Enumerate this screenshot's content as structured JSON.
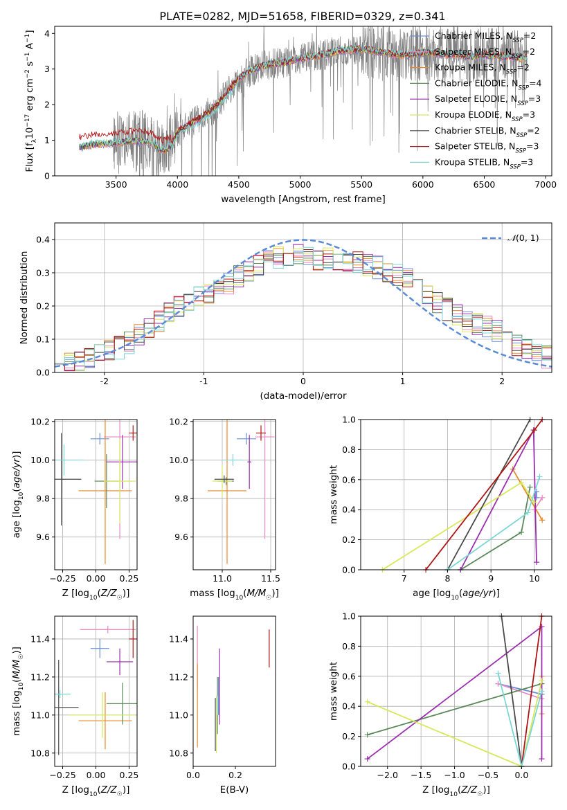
{
  "figure_title": "PLATE=0282, MJD=51658, FIBERID=0329, z=0.341",
  "colors": {
    "Chabrier MILES": "#6a8fd8",
    "Salpeter MILES": "#e78ac3",
    "Kroupa MILES": "#e8892a",
    "Chabrier ELODIE": "#5a8a5a",
    "Salpeter ELODIE": "#9b2fae",
    "Kroupa ELODIE": "#d7e85a",
    "Chabrier STELIB": "#4a4a4a",
    "Salpeter STELIB": "#b01515",
    "Kroupa STELIB": "#7dd6d6",
    "data": "#808080",
    "gaussian": "#5b8ad6",
    "grid": "#b0b0b0"
  },
  "chart_data": [
    {
      "id": "spectrum",
      "type": "line",
      "title": "PLATE=0282, MJD=51658, FIBERID=0329, z=0.341",
      "xlabel": "wavelength [Angstrom, rest frame]",
      "ylabel_tex": "Flux [f_λ 10^-17 erg cm^-2 s^-1 A^-1]",
      "xlim": [
        3000,
        7050
      ],
      "ylim": [
        0,
        4.2
      ],
      "xticks": [
        3500,
        4000,
        4500,
        5000,
        5500,
        6000,
        6500,
        7000
      ],
      "yticks": [
        0,
        1,
        2,
        3,
        4
      ],
      "grid": false,
      "legend_position": "upper right",
      "legend": [
        {
          "base": "Chabrier MILES, N",
          "sub": "SSP",
          "tail": "=2"
        },
        {
          "base": "Salpeter MILES, N",
          "sub": "SSP",
          "tail": "=2"
        },
        {
          "base": "Kroupa MILES, N",
          "sub": "SSP",
          "tail": "=2"
        },
        {
          "base": "Chabrier ELODIE, N",
          "sub": "SSP",
          "tail": "=4"
        },
        {
          "base": "Salpeter ELODIE, N",
          "sub": "SSP",
          "tail": "=3"
        },
        {
          "base": "Kroupa ELODIE, N",
          "sub": "SSP",
          "tail": "=3"
        },
        {
          "base": "Chabrier STELIB, N",
          "sub": "SSP",
          "tail": "=2"
        },
        {
          "base": "Salpeter STELIB, N",
          "sub": "SSP",
          "tail": "=3"
        },
        {
          "base": "Kroupa STELIB, N",
          "sub": "SSP",
          "tail": "=3"
        }
      ],
      "continuum_model": [
        [
          3200,
          0.8
        ],
        [
          3300,
          0.88
        ],
        [
          3400,
          0.9
        ],
        [
          3500,
          0.93
        ],
        [
          3600,
          0.97
        ],
        [
          3700,
          0.98
        ],
        [
          3800,
          0.92
        ],
        [
          3850,
          0.75
        ],
        [
          3900,
          0.72
        ],
        [
          3950,
          0.85
        ],
        [
          4000,
          1.25
        ],
        [
          4100,
          1.45
        ],
        [
          4200,
          1.65
        ],
        [
          4300,
          1.9
        ],
        [
          4400,
          2.3
        ],
        [
          4500,
          2.75
        ],
        [
          4600,
          2.95
        ],
        [
          4700,
          3.1
        ],
        [
          4800,
          3.15
        ],
        [
          4900,
          3.2
        ],
        [
          5000,
          3.3
        ],
        [
          5100,
          3.35
        ],
        [
          5200,
          3.4
        ],
        [
          5300,
          3.5
        ],
        [
          5400,
          3.55
        ],
        [
          5500,
          3.55
        ],
        [
          5600,
          3.5
        ],
        [
          5700,
          3.45
        ],
        [
          5800,
          3.4
        ],
        [
          5900,
          3.4
        ],
        [
          6000,
          3.45
        ],
        [
          6100,
          3.45
        ],
        [
          6200,
          3.4
        ],
        [
          6300,
          3.4
        ],
        [
          6400,
          3.35
        ],
        [
          6500,
          3.4
        ],
        [
          6600,
          3.35
        ],
        [
          6700,
          3.35
        ],
        [
          6800,
          3.3
        ],
        [
          6850,
          3.3
        ]
      ],
      "blue_excess_model": "Salpeter STELIB",
      "data_range": [
        3200,
        6850
      ]
    },
    {
      "id": "residuals",
      "type": "step-histogram",
      "xlabel": "(data-model)/error",
      "ylabel": "Normed distribution",
      "xlim": [
        -2.5,
        2.5
      ],
      "ylim": [
        0,
        0.45
      ],
      "xticks": [
        -2,
        -1,
        0,
        1,
        2
      ],
      "yticks": [
        0.0,
        0.1,
        0.2,
        0.3,
        0.4
      ],
      "grid": true,
      "bin_width": 0.1,
      "reference_curve": {
        "name_tex": "N(0,1)",
        "mean": 0,
        "sigma": 1
      },
      "envelope": [
        [
          -2.5,
          0.03
        ],
        [
          -2.2,
          0.03
        ],
        [
          -2.0,
          0.06
        ],
        [
          -1.8,
          0.08
        ],
        [
          -1.6,
          0.12
        ],
        [
          -1.4,
          0.17
        ],
        [
          -1.2,
          0.21
        ],
        [
          -1.0,
          0.23
        ],
        [
          -0.8,
          0.26
        ],
        [
          -0.6,
          0.3
        ],
        [
          -0.4,
          0.33
        ],
        [
          -0.2,
          0.35
        ],
        [
          0.0,
          0.35
        ],
        [
          0.2,
          0.34
        ],
        [
          0.4,
          0.34
        ],
        [
          0.6,
          0.33
        ],
        [
          0.8,
          0.31
        ],
        [
          1.0,
          0.29
        ],
        [
          1.2,
          0.24
        ],
        [
          1.4,
          0.2
        ],
        [
          1.6,
          0.16
        ],
        [
          1.8,
          0.14
        ],
        [
          2.0,
          0.12
        ],
        [
          2.2,
          0.07
        ],
        [
          2.5,
          0.04
        ]
      ]
    },
    {
      "id": "age_vs_Z",
      "type": "errorbar",
      "xlabel": "Z [log10(Z/Z☉)]",
      "ylabel": "age  [log10(age/yr)]",
      "xlim": [
        -0.31,
        0.31
      ],
      "ylim": [
        9.43,
        10.21
      ],
      "xticks": [
        -0.25,
        0.0,
        0.25
      ],
      "xticklabels": [
        "−0.25",
        "0.00",
        "0.25"
      ],
      "yticks": [
        9.6,
        9.8,
        10.0,
        10.2
      ],
      "grid": true,
      "points": [
        {
          "model": "Chabrier MILES",
          "x": 0.03,
          "y": 10.11,
          "xerr": 0.07,
          "yerr": 0.03
        },
        {
          "model": "Salpeter MILES",
          "x": 0.18,
          "y": 10.12,
          "xerr": 0.12,
          "yerr": 0.53
        },
        {
          "model": "Kroupa MILES",
          "x": 0.07,
          "y": 9.84,
          "xerr": 0.2,
          "yerr": 0.38
        },
        {
          "model": "Chabrier ELODIE",
          "x": 0.08,
          "y": 9.89,
          "xerr": 0.09,
          "yerr": 0.14
        },
        {
          "model": "Salpeter ELODIE",
          "x": 0.2,
          "y": 9.99,
          "xerr": 0.12,
          "yerr": 0.14
        },
        {
          "model": "Kroupa ELODIE",
          "x": 0.18,
          "y": 9.89,
          "xerr": 0.12,
          "yerr": 0.22
        },
        {
          "model": "Chabrier STELIB",
          "x": -0.26,
          "y": 9.9,
          "xerr": 0.15,
          "yerr": 0.24
        },
        {
          "model": "Salpeter STELIB",
          "x": 0.28,
          "y": 10.14,
          "xerr": 0.03,
          "yerr": 0.04
        },
        {
          "model": "Kroupa STELIB",
          "x": -0.24,
          "y": 10.0,
          "xerr": 0.15,
          "yerr": 0.08
        }
      ]
    },
    {
      "id": "age_vs_mass",
      "type": "errorbar",
      "xlabel": "mass [log10(M/M☉)]",
      "ylabel": "",
      "xlim": [
        10.7,
        11.55
      ],
      "ylim": [
        9.43,
        10.21
      ],
      "xticks": [
        11.0,
        11.5
      ],
      "xticklabels": [
        "11.0",
        "11.5"
      ],
      "yticks": [
        9.6,
        9.8,
        10.0,
        10.2
      ],
      "grid": true,
      "points": [
        {
          "model": "Chabrier MILES",
          "x": 11.25,
          "y": 10.11,
          "xerr": 0.1,
          "yerr": 0.03
        },
        {
          "model": "Salpeter MILES",
          "x": 11.44,
          "y": 10.12,
          "xerr": 0.1,
          "yerr": 0.53
        },
        {
          "model": "Kroupa MILES",
          "x": 11.05,
          "y": 9.84,
          "xerr": 0.2,
          "yerr": 0.38
        },
        {
          "model": "Chabrier ELODIE",
          "x": 11.04,
          "y": 9.89,
          "xerr": 0.08,
          "yerr": 0.02
        },
        {
          "model": "Salpeter ELODIE",
          "x": 11.28,
          "y": 9.99,
          "xerr": 0.02,
          "yerr": 0.14
        },
        {
          "model": "Kroupa ELODIE",
          "x": 11.0,
          "y": 9.89,
          "xerr": 0.1,
          "yerr": 0.08
        },
        {
          "model": "Chabrier STELIB",
          "x": 11.02,
          "y": 9.9,
          "xerr": 0.1,
          "yerr": 0.02
        },
        {
          "model": "Salpeter STELIB",
          "x": 11.4,
          "y": 10.14,
          "xerr": 0.05,
          "yerr": 0.04
        },
        {
          "model": "Kroupa STELIB",
          "x": 11.11,
          "y": 10.0,
          "xerr": 0.1,
          "yerr": 0.03
        }
      ]
    },
    {
      "id": "massweight_vs_age",
      "type": "line",
      "xlabel": "age  [log10(age/yr)]",
      "ylabel": "mass weight",
      "xlim": [
        6.0,
        10.4
      ],
      "ylim": [
        0.0,
        1.0
      ],
      "xticks": [
        7,
        8,
        9,
        10
      ],
      "yticks": [
        0.0,
        0.2,
        0.4,
        0.6,
        0.8,
        1.0
      ],
      "grid": true,
      "series": [
        {
          "model": "Chabrier MILES",
          "points": [
            [
              10.05,
              0.52
            ],
            [
              10.05,
              0.48
            ]
          ]
        },
        {
          "model": "Salpeter MILES",
          "points": [
            [
              10.0,
              0.4
            ],
            [
              10.18,
              0.48
            ]
          ]
        },
        {
          "model": "Kroupa MILES",
          "points": [
            [
              9.5,
              0.67
            ],
            [
              10.18,
              0.33
            ]
          ]
        },
        {
          "model": "Chabrier ELODIE",
          "points": [
            [
              8.3,
              0.0
            ],
            [
              9.7,
              0.25
            ],
            [
              9.9,
              0.55
            ]
          ]
        },
        {
          "model": "Salpeter ELODIE",
          "points": [
            [
              8.3,
              0.0
            ],
            [
              9.98,
              0.93
            ],
            [
              10.05,
              0.05
            ]
          ]
        },
        {
          "model": "Kroupa ELODIE",
          "points": [
            [
              6.5,
              0.0
            ],
            [
              9.7,
              0.58
            ],
            [
              10.0,
              0.45
            ]
          ]
        },
        {
          "model": "Chabrier STELIB",
          "points": [
            [
              8.0,
              0.0
            ],
            [
              9.9,
              1.0
            ]
          ]
        },
        {
          "model": "Salpeter STELIB",
          "points": [
            [
              7.5,
              0.0
            ],
            [
              10.0,
              0.93
            ],
            [
              10.18,
              1.0
            ]
          ]
        },
        {
          "model": "Kroupa STELIB",
          "points": [
            [
              8.0,
              0.0
            ],
            [
              9.85,
              0.38
            ],
            [
              10.12,
              0.62
            ]
          ]
        }
      ]
    },
    {
      "id": "mass_vs_Z",
      "type": "errorbar",
      "xlabel": "Z [log10(Z/Z☉)]",
      "ylabel": "mass [log10(M/M☉)]",
      "xlim": [
        -0.31,
        0.31
      ],
      "ylim": [
        10.73,
        11.52
      ],
      "xticks": [
        -0.25,
        0.0,
        0.25
      ],
      "xticklabels": [
        "−0.25",
        "0.00",
        "0.25"
      ],
      "yticks": [
        10.8,
        11.0,
        11.2,
        11.4
      ],
      "grid": true,
      "points": [
        {
          "model": "Chabrier MILES",
          "x": 0.03,
          "y": 11.35,
          "xerr": 0.07,
          "yerr": 0.05
        },
        {
          "model": "Salpeter MILES",
          "x": 0.09,
          "y": 11.45,
          "xerr": 0.21,
          "yerr": 0.02
        },
        {
          "model": "Kroupa MILES",
          "x": 0.07,
          "y": 10.97,
          "xerr": 0.2,
          "yerr": 0.15
        },
        {
          "model": "Chabrier ELODIE",
          "x": 0.2,
          "y": 11.06,
          "xerr": 0.12,
          "yerr": 0.11
        },
        {
          "model": "Salpeter ELODIE",
          "x": 0.18,
          "y": 11.28,
          "xerr": 0.1,
          "yerr": 0.07
        },
        {
          "model": "Kroupa ELODIE",
          "x": 0.05,
          "y": 11.0,
          "xerr": 0.25,
          "yerr": 0.12
        },
        {
          "model": "Chabrier STELIB",
          "x": -0.28,
          "y": 11.04,
          "xerr": 0.15,
          "yerr": 0.25
        },
        {
          "model": "Salpeter STELIB",
          "x": 0.28,
          "y": 11.4,
          "xerr": 0.03,
          "yerr": 0.1
        },
        {
          "model": "Kroupa STELIB",
          "x": -0.27,
          "y": 11.11,
          "xerr": 0.08,
          "yerr": 0.02
        }
      ]
    },
    {
      "id": "mass_vs_EBV",
      "type": "errorbar",
      "xlabel": "E(B-V)",
      "ylabel": "",
      "xlim": [
        0.0,
        0.39
      ],
      "ylim": [
        10.73,
        11.52
      ],
      "xticks": [
        0.0,
        0.2
      ],
      "xticklabels": [
        "0.0",
        "0.2"
      ],
      "yticks": [
        10.8,
        11.0,
        11.2,
        11.4
      ],
      "grid": false,
      "points": [
        {
          "model": "Chabrier MILES",
          "x": 0.12,
          "y": 11.1,
          "xerr": 0.0,
          "yerr": 0.1
        },
        {
          "model": "Salpeter MILES",
          "x": 0.02,
          "y": 11.3,
          "xerr": 0.0,
          "yerr": 0.17
        },
        {
          "model": "Kroupa MILES",
          "x": 0.02,
          "y": 11.05,
          "xerr": 0.0,
          "yerr": 0.22
        },
        {
          "model": "Chabrier ELODIE",
          "x": 0.115,
          "y": 11.05,
          "xerr": 0.0,
          "yerr": 0.15
        },
        {
          "model": "Salpeter ELODIE",
          "x": 0.125,
          "y": 11.15,
          "xerr": 0.0,
          "yerr": 0.2
        },
        {
          "model": "Kroupa ELODIE",
          "x": 0.11,
          "y": 10.95,
          "xerr": 0.0,
          "yerr": 0.15
        },
        {
          "model": "Chabrier STELIB",
          "x": 0.105,
          "y": 10.95,
          "xerr": 0.0,
          "yerr": 0.14
        },
        {
          "model": "Salpeter STELIB",
          "x": 0.36,
          "y": 11.35,
          "xerr": 0.0,
          "yerr": 0.1
        },
        {
          "model": "Kroupa STELIB",
          "x": 0.115,
          "y": 11.05,
          "xerr": 0.0,
          "yerr": 0.05
        }
      ]
    },
    {
      "id": "massweight_vs_Z",
      "type": "line",
      "xlabel": "Z [log10(Z/Z☉)]",
      "ylabel": "mass weight",
      "xlim": [
        -2.4,
        0.45
      ],
      "ylim": [
        0.0,
        1.0
      ],
      "xticks": [
        -2.0,
        -1.5,
        -1.0,
        -0.5,
        0.0
      ],
      "xticklabels": [
        "−2.0",
        "−1.5",
        "−1.0",
        "−0.5",
        "0.0"
      ],
      "yticks": [
        0.0,
        0.2,
        0.4,
        0.6,
        0.8,
        1.0
      ],
      "grid": true,
      "series": [
        {
          "model": "Chabrier MILES",
          "points": [
            [
              -0.35,
              0.55
            ],
            [
              0.3,
              0.48
            ]
          ]
        },
        {
          "model": "Salpeter MILES",
          "points": [
            [
              -0.35,
              0.55
            ],
            [
              0.3,
              0.45
            ]
          ]
        },
        {
          "model": "Kroupa MILES",
          "points": [
            [
              0.3,
              0.6
            ],
            [
              0.3,
              0.35
            ]
          ]
        },
        {
          "model": "Chabrier ELODIE",
          "points": [
            [
              -2.3,
              0.21
            ],
            [
              0.3,
              0.55
            ]
          ]
        },
        {
          "model": "Salpeter ELODIE",
          "points": [
            [
              -2.3,
              0.05
            ],
            [
              0.3,
              0.93
            ],
            [
              0.3,
              0.05
            ]
          ]
        },
        {
          "model": "Kroupa ELODIE",
          "points": [
            [
              -2.3,
              0.43
            ],
            [
              0.0,
              0.0
            ],
            [
              0.3,
              0.57
            ]
          ]
        },
        {
          "model": "Chabrier STELIB",
          "points": [
            [
              -0.3,
              1.0
            ],
            [
              0.0,
              0.0
            ]
          ]
        },
        {
          "model": "Salpeter STELIB",
          "points": [
            [
              0.0,
              0.0
            ],
            [
              0.3,
              1.0
            ]
          ]
        },
        {
          "model": "Kroupa STELIB",
          "points": [
            [
              -0.35,
              0.62
            ],
            [
              0.0,
              0.0
            ],
            [
              0.3,
              0.5
            ]
          ]
        }
      ]
    }
  ]
}
